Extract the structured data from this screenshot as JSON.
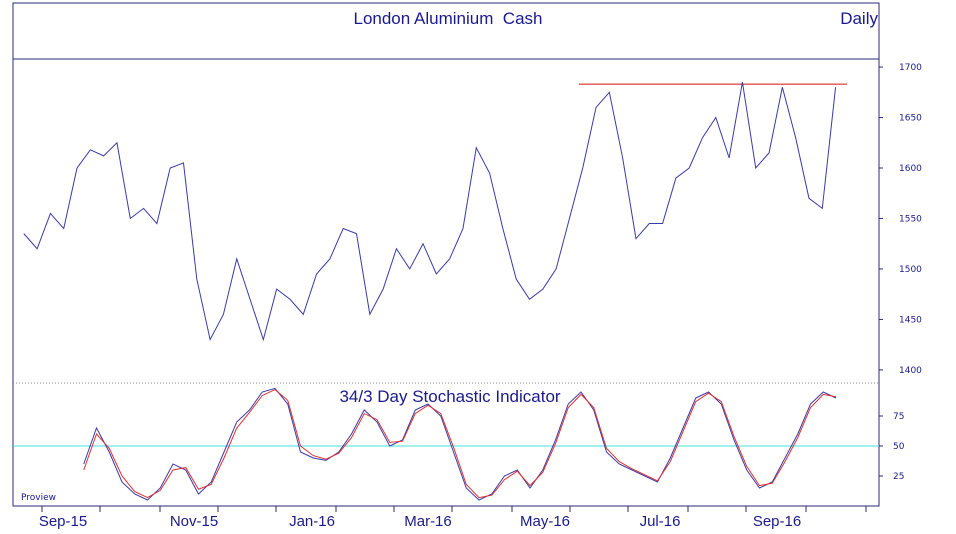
{
  "colors": {
    "frame": "#2a2a7a",
    "price_line": "#3a3aa8",
    "resistance_line": "#e05050",
    "stoch_k": "#3a3aa8",
    "stoch_d": "#e03030",
    "mid_line": "#40e0e0",
    "text": "#1a1a8c"
  },
  "chart_data": [
    {
      "type": "line",
      "title": "London Aluminium  Cash",
      "frequency_label": "Daily",
      "ylim": [
        1390,
        1705
      ],
      "y_ticks": [
        1400,
        1450,
        1500,
        1550,
        1600,
        1650,
        1700
      ],
      "x_ticks": [
        "Sep-15",
        "Nov-15",
        "Jan-16",
        "Mar-16",
        "May-16",
        "Jul-16",
        "Sep-16"
      ],
      "resistance_level": 1683,
      "series": [
        {
          "x": [
            "2015-08-14",
            "2015-08-21",
            "2015-08-28",
            "2015-09-04",
            "2015-09-11",
            "2015-09-18",
            "2015-09-25",
            "2015-10-02",
            "2015-10-09",
            "2015-10-16",
            "2015-10-23",
            "2015-10-30",
            "2015-11-06",
            "2015-11-13",
            "2015-11-20",
            "2015-11-27",
            "2015-12-04",
            "2015-12-11",
            "2015-12-18",
            "2015-12-25",
            "2016-01-01",
            "2016-01-08",
            "2016-01-15",
            "2016-01-22",
            "2016-01-29",
            "2016-02-05",
            "2016-02-12",
            "2016-02-19",
            "2016-02-26",
            "2016-03-04",
            "2016-03-11",
            "2016-03-18",
            "2016-03-25",
            "2016-04-01",
            "2016-04-08",
            "2016-04-15",
            "2016-04-22",
            "2016-04-29",
            "2016-05-06",
            "2016-05-13",
            "2016-05-20",
            "2016-05-27",
            "2016-06-03",
            "2016-06-10",
            "2016-06-17",
            "2016-06-24",
            "2016-07-01",
            "2016-07-08",
            "2016-07-15",
            "2016-07-22",
            "2016-07-29",
            "2016-08-05",
            "2016-08-12",
            "2016-08-19",
            "2016-08-26",
            "2016-09-02",
            "2016-09-09",
            "2016-09-16",
            "2016-09-23",
            "2016-09-30",
            "2016-10-07",
            "2016-10-14"
          ],
          "values": [
            1535,
            1520,
            1555,
            1540,
            1600,
            1618,
            1612,
            1625,
            1550,
            1560,
            1545,
            1600,
            1605,
            1490,
            1430,
            1455,
            1510,
            1470,
            1430,
            1480,
            1470,
            1455,
            1495,
            1510,
            1540,
            1535,
            1455,
            1480,
            1520,
            1500,
            1525,
            1495,
            1510,
            1540,
            1620,
            1595,
            1540,
            1490,
            1470,
            1480,
            1500,
            1550,
            1600,
            1660,
            1675,
            1610,
            1530,
            1545,
            1545,
            1590,
            1600,
            1630,
            1650,
            1610,
            1685,
            1600,
            1615,
            1680,
            1630,
            1570,
            1560,
            1680
          ]
        }
      ]
    },
    {
      "type": "line",
      "title": "34/3 Day Stochastic Indicator",
      "ylim": [
        0,
        100
      ],
      "y_ticks": [
        25,
        50,
        75
      ],
      "reference_line": 50,
      "watermark": "Proview",
      "series": [
        {
          "values": [
            null,
            null,
            null,
            null,
            null,
            35,
            65,
            45,
            20,
            10,
            5,
            15,
            35,
            30,
            10,
            20,
            45,
            70,
            80,
            95,
            98,
            85,
            45,
            40,
            38,
            45,
            60,
            80,
            70,
            50,
            55,
            80,
            85,
            75,
            45,
            15,
            5,
            10,
            25,
            30,
            15,
            30,
            55,
            85,
            95,
            80,
            45,
            35,
            30,
            25,
            20,
            40,
            65,
            90,
            95,
            85,
            55,
            30,
            15,
            20,
            40,
            60,
            85,
            95,
            90
          ]
        },
        {
          "values": [
            null,
            null,
            null,
            null,
            null,
            30,
            60,
            48,
            25,
            12,
            7,
            13,
            30,
            32,
            14,
            18,
            40,
            65,
            78,
            92,
            97,
            88,
            50,
            42,
            39,
            44,
            57,
            77,
            72,
            53,
            54,
            77,
            84,
            77,
            49,
            18,
            7,
            9,
            22,
            29,
            17,
            28,
            52,
            82,
            93,
            82,
            48,
            37,
            31,
            26,
            21,
            37,
            62,
            87,
            94,
            87,
            58,
            33,
            17,
            19,
            37,
            57,
            82,
            93,
            91
          ]
        }
      ]
    }
  ]
}
